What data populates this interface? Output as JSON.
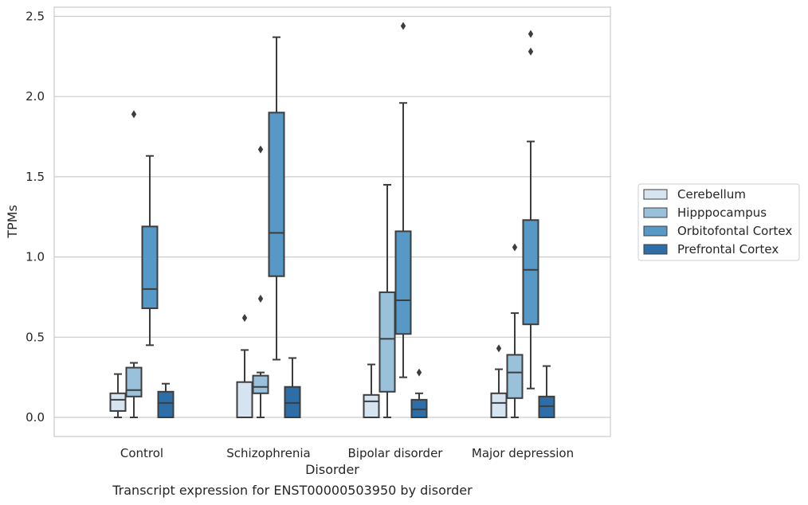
{
  "caption": "Transcript expression for ENST00000503950 by disorder",
  "chart_data": {
    "type": "boxplot",
    "xlabel": "Disorder",
    "ylabel": "TPMs",
    "ylim": [
      -0.12,
      2.56
    ],
    "yticks": [
      0.0,
      0.5,
      1.0,
      1.5,
      2.0,
      2.5
    ],
    "ytick_labels": [
      "0.0",
      "0.5",
      "1.0",
      "1.5",
      "2.0",
      "2.5"
    ],
    "grid": "horizontal",
    "legend_position": "right",
    "categories": [
      "Control",
      "Schizophrenia",
      "Bipolar disorder",
      "Major depression"
    ],
    "series": [
      {
        "name": "Cerebellum",
        "color": "#d6e4f2",
        "boxes": [
          {
            "whislo": 0.0,
            "q1": 0.04,
            "med": 0.11,
            "q3": 0.15,
            "whishi": 0.27,
            "fliers": []
          },
          {
            "whislo": 0.0,
            "q1": 0.0,
            "med": 0.0,
            "q3": 0.22,
            "whishi": 0.42,
            "fliers": [
              0.62
            ]
          },
          {
            "whislo": 0.0,
            "q1": 0.0,
            "med": 0.1,
            "q3": 0.14,
            "whishi": 0.33,
            "fliers": []
          },
          {
            "whislo": 0.0,
            "q1": 0.0,
            "med": 0.09,
            "q3": 0.15,
            "whishi": 0.3,
            "fliers": [
              0.43
            ]
          }
        ]
      },
      {
        "name": "Hipppocampus",
        "color": "#9ac1dc",
        "boxes": [
          {
            "whislo": 0.0,
            "q1": 0.13,
            "med": 0.17,
            "q3": 0.31,
            "whishi": 0.34,
            "fliers": [
              1.89
            ]
          },
          {
            "whislo": 0.0,
            "q1": 0.15,
            "med": 0.19,
            "q3": 0.26,
            "whishi": 0.28,
            "fliers": [
              0.74,
              1.67
            ]
          },
          {
            "whislo": 0.0,
            "q1": 0.16,
            "med": 0.49,
            "q3": 0.78,
            "whishi": 1.45,
            "fliers": []
          },
          {
            "whislo": 0.0,
            "q1": 0.12,
            "med": 0.28,
            "q3": 0.39,
            "whishi": 0.65,
            "fliers": [
              1.06
            ]
          }
        ]
      },
      {
        "name": "Orbitofontal Cortex",
        "color": "#5698c6",
        "boxes": [
          {
            "whislo": 0.45,
            "q1": 0.68,
            "med": 0.8,
            "q3": 1.19,
            "whishi": 1.63,
            "fliers": []
          },
          {
            "whislo": 0.36,
            "q1": 0.88,
            "med": 1.15,
            "q3": 1.9,
            "whishi": 2.37,
            "fliers": []
          },
          {
            "whislo": 0.25,
            "q1": 0.52,
            "med": 0.73,
            "q3": 1.16,
            "whishi": 1.96,
            "fliers": [
              2.44
            ]
          },
          {
            "whislo": 0.18,
            "q1": 0.58,
            "med": 0.92,
            "q3": 1.23,
            "whishi": 1.72,
            "fliers": [
              2.28,
              2.39
            ]
          }
        ]
      },
      {
        "name": "Prefrontal Cortex",
        "color": "#2e6ea8",
        "boxes": [
          {
            "whislo": 0.0,
            "q1": 0.0,
            "med": 0.09,
            "q3": 0.16,
            "whishi": 0.21,
            "fliers": []
          },
          {
            "whislo": 0.0,
            "q1": 0.0,
            "med": 0.09,
            "q3": 0.19,
            "whishi": 0.37,
            "fliers": []
          },
          {
            "whislo": 0.0,
            "q1": 0.0,
            "med": 0.05,
            "q3": 0.11,
            "whishi": 0.15,
            "fliers": [
              0.28
            ]
          },
          {
            "whislo": 0.0,
            "q1": 0.0,
            "med": 0.07,
            "q3": 0.13,
            "whishi": 0.32,
            "fliers": []
          }
        ]
      }
    ]
  }
}
